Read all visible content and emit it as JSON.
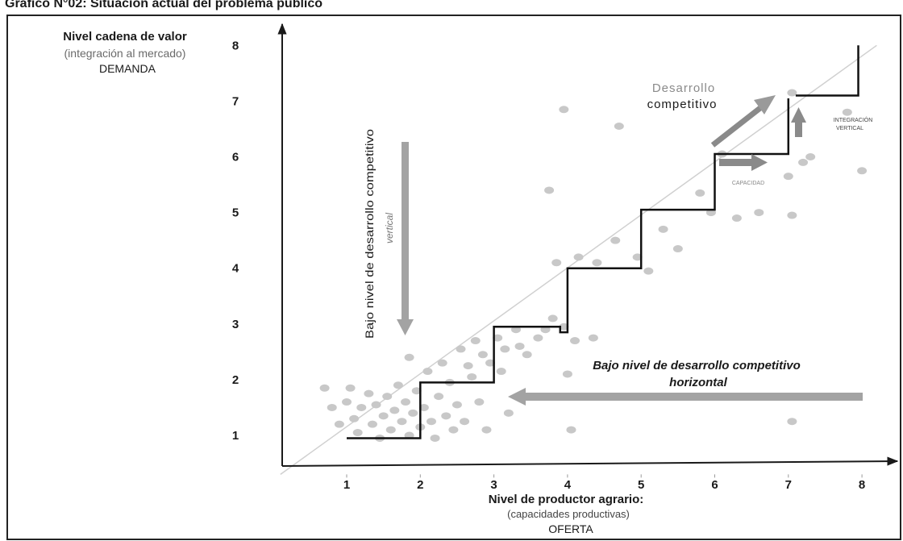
{
  "figure_title": "Gráfico N°02: Situación actual del problema público",
  "chart_data": {
    "type": "scatter",
    "title": "",
    "ylabel": {
      "line1": "Nivel cadena de valor",
      "line2": "(integración al mercado)",
      "line3": "DEMANDA"
    },
    "xlabel": {
      "line1": "Nivel de productor agrario:",
      "line2": "(capacidades productivas)",
      "line3": "OFERTA"
    },
    "xlim": [
      0.1,
      8.5
    ],
    "ylim": [
      0.3,
      8.6
    ],
    "x_ticks": [
      1,
      2,
      3,
      4,
      5,
      6,
      7,
      8
    ],
    "y_ticks": [
      1,
      2,
      3,
      4,
      5,
      6,
      7,
      8
    ],
    "diagonal": [
      [
        0.1,
        0.3
      ],
      [
        8.2,
        8.0
      ]
    ],
    "staircase": [
      [
        1,
        0.95
      ],
      [
        2,
        0.95
      ],
      [
        2,
        1.95
      ],
      [
        3,
        1.95
      ],
      [
        3,
        2.95
      ],
      [
        3.9,
        2.95
      ],
      [
        3.9,
        2.85
      ],
      [
        4,
        2.85
      ],
      [
        4,
        4
      ],
      [
        5,
        4
      ],
      [
        5,
        5.05
      ],
      [
        6,
        5.05
      ],
      [
        6,
        6.05
      ],
      [
        7,
        6.05
      ],
      [
        7,
        7.05
      ]
    ],
    "upper_step": [
      [
        7.1,
        7.1
      ],
      [
        7.95,
        7.1
      ],
      [
        7.95,
        8.0
      ]
    ],
    "points": [
      [
        0.7,
        1.85
      ],
      [
        0.8,
        1.5
      ],
      [
        0.9,
        1.2
      ],
      [
        1.0,
        1.6
      ],
      [
        1.05,
        1.85
      ],
      [
        1.1,
        1.3
      ],
      [
        1.15,
        1.05
      ],
      [
        1.2,
        1.5
      ],
      [
        1.3,
        1.75
      ],
      [
        1.35,
        1.2
      ],
      [
        1.4,
        1.55
      ],
      [
        1.45,
        0.95
      ],
      [
        1.5,
        1.35
      ],
      [
        1.55,
        1.7
      ],
      [
        1.6,
        1.1
      ],
      [
        1.65,
        1.45
      ],
      [
        1.7,
        1.9
      ],
      [
        1.75,
        1.25
      ],
      [
        1.8,
        1.6
      ],
      [
        1.85,
        1.0
      ],
      [
        1.9,
        1.4
      ],
      [
        1.95,
        1.8
      ],
      [
        2.0,
        1.15
      ],
      [
        2.05,
        1.5
      ],
      [
        2.1,
        2.15
      ],
      [
        2.15,
        1.25
      ],
      [
        2.2,
        0.95
      ],
      [
        2.25,
        1.7
      ],
      [
        1.85,
        2.4
      ],
      [
        2.3,
        2.3
      ],
      [
        2.35,
        1.35
      ],
      [
        2.4,
        1.95
      ],
      [
        2.45,
        1.1
      ],
      [
        2.5,
        1.55
      ],
      [
        2.55,
        2.55
      ],
      [
        2.6,
        1.25
      ],
      [
        2.65,
        2.25
      ],
      [
        2.7,
        2.05
      ],
      [
        2.8,
        1.6
      ],
      [
        2.9,
        1.1
      ],
      [
        2.75,
        2.7
      ],
      [
        2.85,
        2.45
      ],
      [
        2.95,
        2.3
      ],
      [
        3.05,
        2.75
      ],
      [
        3.1,
        2.15
      ],
      [
        3.15,
        2.55
      ],
      [
        3.2,
        1.4
      ],
      [
        3.3,
        2.9
      ],
      [
        3.35,
        2.6
      ],
      [
        3.45,
        2.45
      ],
      [
        3.6,
        2.75
      ],
      [
        3.7,
        2.9
      ],
      [
        3.8,
        3.1
      ],
      [
        3.95,
        2.95
      ],
      [
        4.0,
        2.1
      ],
      [
        4.05,
        1.1
      ],
      [
        4.1,
        2.7
      ],
      [
        4.35,
        2.75
      ],
      [
        3.85,
        4.1
      ],
      [
        4.15,
        4.2
      ],
      [
        4.4,
        4.1
      ],
      [
        4.65,
        4.5
      ],
      [
        4.95,
        4.2
      ],
      [
        5.1,
        3.95
      ],
      [
        5.3,
        4.7
      ],
      [
        5.5,
        4.35
      ],
      [
        5.8,
        5.35
      ],
      [
        5.95,
        5.0
      ],
      [
        6.3,
        4.9
      ],
      [
        6.6,
        5.0
      ],
      [
        7.05,
        4.95
      ],
      [
        7.2,
        5.9
      ],
      [
        3.75,
        5.4
      ],
      [
        3.95,
        6.85
      ],
      [
        4.7,
        6.55
      ],
      [
        6.1,
        6.05
      ],
      [
        7.0,
        5.65
      ],
      [
        7.05,
        7.15
      ],
      [
        7.3,
        6.0
      ],
      [
        7.8,
        6.8
      ],
      [
        8.0,
        5.75
      ],
      [
        7.05,
        1.25
      ]
    ],
    "annotations": {
      "desarrollo_line1": "Desarrollo",
      "desarrollo_line2": "competitivo",
      "integracion_line1": "INTEGRACIÓN",
      "integracion_line2": "VERTICAL",
      "capacidad": "CAPACIDAD",
      "bajo_vertical_line1": "Bajo nivel de desarrollo competitivo",
      "bajo_vertical_line2": "vertical",
      "bajo_horizontal_line1": "Bajo nivel de desarrollo competitivo",
      "bajo_horizontal_line2": "horizontal"
    },
    "colors": {
      "axis": "#1a1a1a",
      "step": "#111111",
      "points": "#c8c8c8",
      "arrow": "#a3a3a3",
      "arrow_dark": "#8a8a8a",
      "diagonal": "#d0d0d0"
    }
  }
}
